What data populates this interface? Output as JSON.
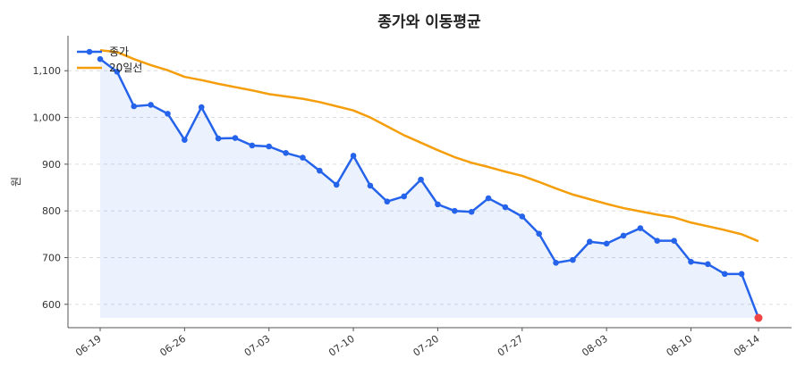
{
  "chart_data": {
    "type": "line",
    "title": "종가와 이동평균",
    "xlabel": "",
    "ylabel": "원",
    "ylim": [
      550,
      1175
    ],
    "yticks": [
      600,
      700,
      800,
      900,
      1000,
      1100
    ],
    "ytick_labels": [
      "600",
      "700",
      "800",
      "900",
      "1,000",
      "1,100"
    ],
    "xtick_labels": [
      "06-19",
      "06-26",
      "07-03",
      "07-10",
      "07-20",
      "07-27",
      "08-03",
      "08-10",
      "08-14"
    ],
    "xtick_indices": [
      0,
      5,
      10,
      15,
      20,
      25,
      30,
      35,
      39
    ],
    "x": [
      "06-19",
      "06-20",
      "06-21",
      "06-22",
      "06-23",
      "06-26",
      "06-27",
      "06-28",
      "06-29",
      "06-30",
      "07-03",
      "07-04",
      "07-05",
      "07-06",
      "07-07",
      "07-10",
      "07-11",
      "07-12",
      "07-13",
      "07-14",
      "07-20",
      "07-21",
      "07-24",
      "07-25",
      "07-26",
      "07-27",
      "07-28",
      "07-31",
      "08-01",
      "08-02",
      "08-03",
      "08-04",
      "08-07",
      "08-08",
      "08-09",
      "08-10",
      "08-11",
      "08-12",
      "08-13",
      "08-14"
    ],
    "series": [
      {
        "name": "종가",
        "color": "#2563eb",
        "marker": "circle",
        "fill": true,
        "values": [
          1125,
          1098,
          1024,
          1027,
          1008,
          952,
          1022,
          955,
          956,
          940,
          938,
          924,
          914,
          886,
          856,
          918,
          854,
          820,
          831,
          867,
          814,
          800,
          798,
          827,
          808,
          788,
          751,
          689,
          695,
          734,
          730,
          747,
          763,
          736,
          736,
          691,
          686,
          665,
          665,
          571
        ]
      },
      {
        "name": "20일선",
        "color": "#f59e0b",
        "marker": "none",
        "fill": false,
        "values": [
          1144,
          1140,
          1125,
          1112,
          1101,
          1087,
          1080,
          1072,
          1065,
          1058,
          1050,
          1045,
          1040,
          1033,
          1024,
          1015,
          1000,
          981,
          962,
          946,
          930,
          915,
          903,
          894,
          884,
          875,
          862,
          848,
          835,
          825,
          815,
          806,
          799,
          792,
          786,
          775,
          767,
          759,
          750,
          735
        ]
      }
    ],
    "highlight_last": {
      "color": "#ef4444"
    },
    "grid": true,
    "legend_position": "top-left"
  }
}
